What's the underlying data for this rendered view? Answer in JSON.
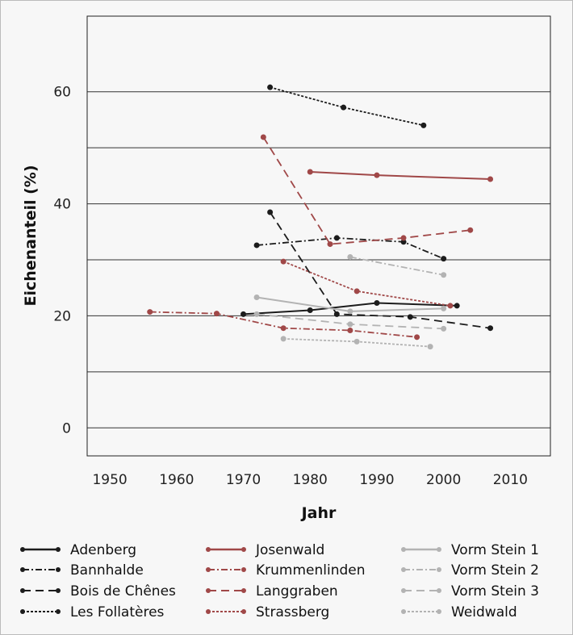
{
  "chart_data": {
    "type": "line",
    "title": "",
    "xlabel": "Jahr",
    "ylabel": "Eichenanteil (%)",
    "xlim": [
      1946.6,
      2016
    ],
    "ylim": [
      -5,
      73.5
    ],
    "xticks": [
      1950,
      1960,
      1970,
      1980,
      1990,
      2000,
      2010
    ],
    "yticks": [
      0,
      20,
      40,
      60
    ],
    "grid": {
      "horizontal": true,
      "vertical": false,
      "gridlines": [
        0,
        10,
        20,
        30,
        40,
        50,
        60
      ]
    },
    "legend_position": "bottom",
    "colors": {
      "black": "#1c1c1c",
      "red": "#a04848",
      "grey": "#b3b3b3",
      "background": "#f7f7f7"
    },
    "series": [
      {
        "name": "Adenberg",
        "color": "black",
        "dash": "solid",
        "x": [
          1970,
          1980,
          1990,
          2002
        ],
        "y": [
          20.3,
          21.0,
          22.3,
          21.8
        ]
      },
      {
        "name": "Bannhalde",
        "color": "black",
        "dash": "dashdot",
        "x": [
          1972,
          1984,
          1994,
          2000
        ],
        "y": [
          32.6,
          33.9,
          33.2,
          30.2
        ]
      },
      {
        "name": "Bois de Chênes",
        "color": "black",
        "dash": "dashed",
        "x": [
          1974,
          1984,
          1995,
          2007
        ],
        "y": [
          38.5,
          20.3,
          19.8,
          17.8
        ]
      },
      {
        "name": "Les Follatères",
        "color": "black",
        "dash": "dotted",
        "x": [
          1974,
          1985,
          1997
        ],
        "y": [
          60.8,
          57.2,
          54.0
        ]
      },
      {
        "name": "Josenwald",
        "color": "red",
        "dash": "solid",
        "x": [
          1980,
          1990,
          2007
        ],
        "y": [
          45.7,
          45.1,
          44.4
        ]
      },
      {
        "name": "Krummenlinden",
        "color": "red",
        "dash": "dashdot",
        "x": [
          1956,
          1966,
          1976,
          1986,
          1996
        ],
        "y": [
          20.7,
          20.4,
          17.8,
          17.4,
          16.2
        ]
      },
      {
        "name": "Langgraben",
        "color": "red",
        "dash": "dashed",
        "x": [
          1973,
          1983,
          1994,
          2004
        ],
        "y": [
          51.9,
          32.8,
          33.9,
          35.3
        ]
      },
      {
        "name": "Strassberg",
        "color": "red",
        "dash": "dotted",
        "x": [
          1976,
          1987,
          2001
        ],
        "y": [
          29.7,
          24.4,
          21.8
        ]
      },
      {
        "name": "Vorm Stein 1",
        "color": "grey",
        "dash": "solid",
        "x": [
          1972,
          1986,
          2000
        ],
        "y": [
          23.3,
          20.8,
          21.3
        ]
      },
      {
        "name": "Vorm Stein 2",
        "color": "grey",
        "dash": "dashdot",
        "x": [
          1986,
          2000
        ],
        "y": [
          30.5,
          27.3
        ]
      },
      {
        "name": "Vorm Stein 3",
        "color": "grey",
        "dash": "dashed",
        "x": [
          1972,
          1986,
          2000
        ],
        "y": [
          20.3,
          18.5,
          17.7
        ]
      },
      {
        "name": "Weidwald",
        "color": "grey",
        "dash": "dotted",
        "x": [
          1976,
          1987,
          1998
        ],
        "y": [
          15.9,
          15.4,
          14.5
        ]
      }
    ]
  }
}
